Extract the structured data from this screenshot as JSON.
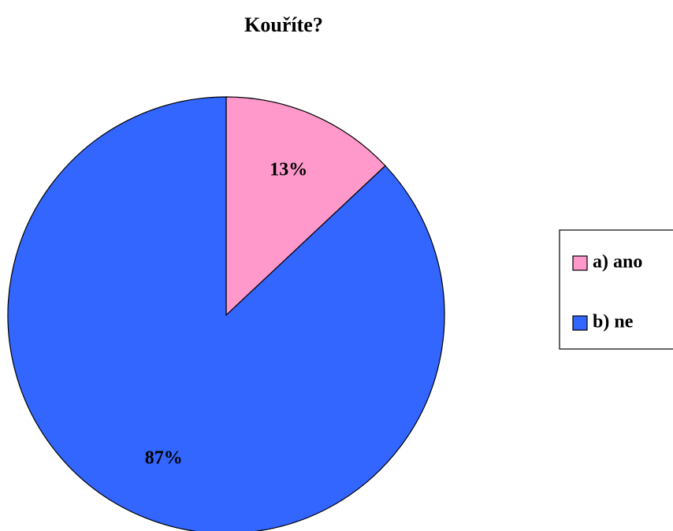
{
  "chart_data": {
    "type": "pie",
    "title": "Kouříte?",
    "categories": [
      "a) ano",
      "b) ne"
    ],
    "values": [
      13,
      87
    ],
    "value_labels": [
      "13%",
      "87%"
    ],
    "colors": [
      "#ff99cc",
      "#3366ff"
    ],
    "legend": "right"
  }
}
